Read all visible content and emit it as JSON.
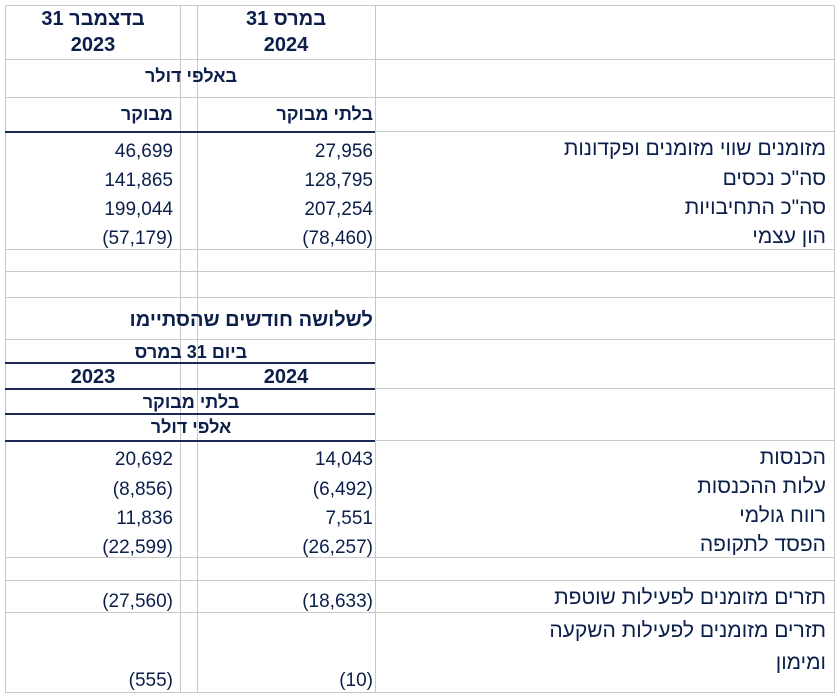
{
  "balance": {
    "col2024_line1": "31 במרס",
    "col2024_line2": "2024",
    "col2023_line1": "31 בדצמבר",
    "col2023_line2": "2023",
    "units": "באלפי דולר",
    "col2024_audit": "בלתי מבוקר",
    "col2023_audit": "מבוקר",
    "rows": [
      {
        "label": "מזומנים שווי מזומנים ופקדונות",
        "v2024": "27,956",
        "v2023": "46,699"
      },
      {
        "label": "סה\"כ נכסים",
        "v2024": "128,795",
        "v2023": "141,865"
      },
      {
        "label": "סה\"כ התחיבויות",
        "v2024": "207,254",
        "v2023": "199,044"
      },
      {
        "label": "הון עצמי",
        "v2024": "(78,460)",
        "v2023": "(57,179)"
      }
    ]
  },
  "income": {
    "period_line1": "לשלושה חודשים שהסתיימו",
    "period_line2": "ביום 31 במרס",
    "year1": "2024",
    "year2": "2023",
    "audit": "בלתי מבוקר",
    "units": "אלפי דולר",
    "rows": [
      {
        "label": "הכנסות",
        "v2024": "14,043",
        "v2023": "20,692"
      },
      {
        "label": "עלות ההכנסות",
        "v2024": "(6,492)",
        "v2023": "(8,856)"
      },
      {
        "label": "רווח גולמי",
        "v2024": "7,551",
        "v2023": "11,836"
      },
      {
        "label": "הפסד לתקופה",
        "v2024": "(26,257)",
        "v2023": "(22,599)"
      }
    ],
    "cashflow_operating": {
      "label": "תזרים מזומנים לפעילות שוטפת",
      "v2024": "(18,633)",
      "v2023": "(27,560)"
    },
    "cashflow_investing": {
      "label_line1": "תזרים מזומנים לפעילות השקעה",
      "label_line2": "ומימון",
      "v2024": "(10)",
      "v2023": "(555)"
    }
  }
}
